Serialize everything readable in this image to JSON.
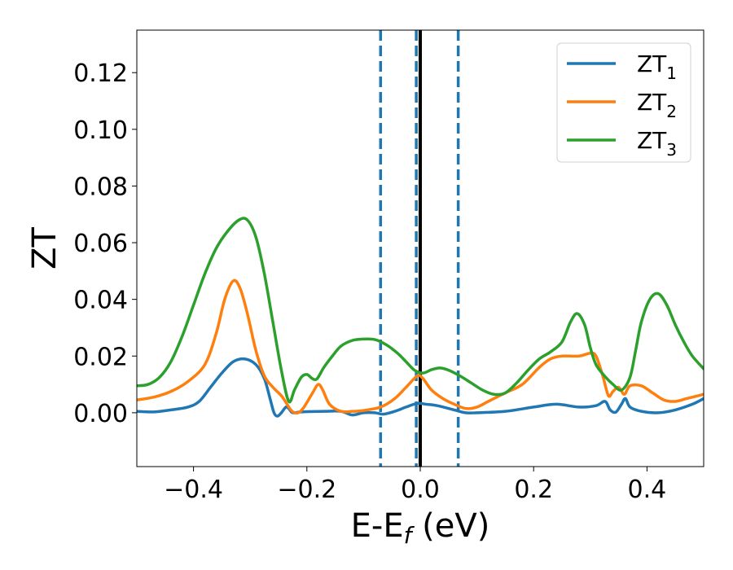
{
  "chart_data": {
    "type": "line",
    "xlabel": "E-E",
    "xlabel_sub": "f",
    "xlabel_suffix": " (eV)",
    "ylabel": "ZT",
    "xlim": [
      -0.5,
      0.5
    ],
    "ylim": [
      -0.019,
      0.135
    ],
    "x_ticks": [
      -0.4,
      -0.2,
      0.0,
      0.2,
      0.4
    ],
    "x_tick_labels": [
      "−0.4",
      "−0.2",
      "0.0",
      "0.2",
      "0.4"
    ],
    "y_ticks": [
      0.0,
      0.02,
      0.04,
      0.06,
      0.08,
      0.1,
      0.12
    ],
    "y_tick_labels": [
      "0.00",
      "0.02",
      "0.04",
      "0.06",
      "0.08",
      "0.10",
      "0.12"
    ],
    "grid": false,
    "legend_position": "top-right",
    "vertical_lines": [
      {
        "x": -0.07,
        "style": "dashed",
        "color": "#1f77b4"
      },
      {
        "x": -0.007,
        "style": "dashed",
        "color": "#1f77b4"
      },
      {
        "x": 0.0,
        "style": "solid",
        "color": "#000000"
      },
      {
        "x": 0.067,
        "style": "dashed",
        "color": "#1f77b4"
      }
    ],
    "series": [
      {
        "name": "ZT",
        "name_sub": "1",
        "color": "#1f77b4",
        "points": [
          [
            -0.5,
            0.0005
          ],
          [
            -0.47,
            0.0003
          ],
          [
            -0.44,
            0.001
          ],
          [
            -0.41,
            0.002
          ],
          [
            -0.39,
            0.004
          ],
          [
            -0.37,
            0.009
          ],
          [
            -0.35,
            0.014
          ],
          [
            -0.33,
            0.018
          ],
          [
            -0.31,
            0.019
          ],
          [
            -0.29,
            0.017
          ],
          [
            -0.275,
            0.012
          ],
          [
            -0.265,
            0.005
          ],
          [
            -0.258,
            0.0
          ],
          [
            -0.252,
            -0.0012
          ],
          [
            -0.245,
            0.0
          ],
          [
            -0.237,
            0.002
          ],
          [
            -0.232,
            0.0015
          ],
          [
            -0.225,
            0.0
          ],
          [
            -0.21,
            0.0003
          ],
          [
            -0.17,
            0.0005
          ],
          [
            -0.14,
            0.0005
          ],
          [
            -0.12,
            -0.0008
          ],
          [
            -0.1,
            0.0
          ],
          [
            -0.08,
            0.0
          ],
          [
            -0.065,
            -0.0005
          ],
          [
            -0.045,
            0.0005
          ],
          [
            -0.025,
            0.002
          ],
          [
            -0.005,
            0.0033
          ],
          [
            0.01,
            0.003
          ],
          [
            0.03,
            0.0025
          ],
          [
            0.06,
            0.001
          ],
          [
            0.08,
            0.0
          ],
          [
            0.1,
            0.0
          ],
          [
            0.15,
            0.0005
          ],
          [
            0.2,
            0.002
          ],
          [
            0.24,
            0.003
          ],
          [
            0.28,
            0.002
          ],
          [
            0.31,
            0.0025
          ],
          [
            0.326,
            0.004
          ],
          [
            0.335,
            0.001
          ],
          [
            0.345,
            0.0002
          ],
          [
            0.355,
            0.003
          ],
          [
            0.362,
            0.005
          ],
          [
            0.37,
            0.002
          ],
          [
            0.39,
            0.0005
          ],
          [
            0.42,
            0.0
          ],
          [
            0.45,
            0.001
          ],
          [
            0.48,
            0.003
          ],
          [
            0.5,
            0.005
          ]
        ]
      },
      {
        "name": "ZT",
        "name_sub": "2",
        "color": "#ff7f0e",
        "points": [
          [
            -0.5,
            0.0045
          ],
          [
            -0.47,
            0.0055
          ],
          [
            -0.44,
            0.0075
          ],
          [
            -0.41,
            0.011
          ],
          [
            -0.38,
            0.017
          ],
          [
            -0.36,
            0.028
          ],
          [
            -0.345,
            0.04
          ],
          [
            -0.33,
            0.0465
          ],
          [
            -0.318,
            0.044
          ],
          [
            -0.305,
            0.035
          ],
          [
            -0.29,
            0.022
          ],
          [
            -0.275,
            0.013
          ],
          [
            -0.26,
            0.009
          ],
          [
            -0.245,
            0.006
          ],
          [
            -0.235,
            0.003
          ],
          [
            -0.226,
            0.0005
          ],
          [
            -0.215,
            0.0
          ],
          [
            -0.205,
            0.002
          ],
          [
            -0.19,
            0.007
          ],
          [
            -0.18,
            0.01
          ],
          [
            -0.172,
            0.008
          ],
          [
            -0.16,
            0.003
          ],
          [
            -0.14,
            0.0005
          ],
          [
            -0.12,
            0.0005
          ],
          [
            -0.1,
            0.0008
          ],
          [
            -0.07,
            0.002
          ],
          [
            -0.045,
            0.005
          ],
          [
            -0.025,
            0.009
          ],
          [
            -0.005,
            0.013
          ],
          [
            0.005,
            0.012
          ],
          [
            0.02,
            0.008
          ],
          [
            0.04,
            0.005
          ],
          [
            0.06,
            0.003
          ],
          [
            0.08,
            0.0015
          ],
          [
            0.1,
            0.002
          ],
          [
            0.12,
            0.004
          ],
          [
            0.15,
            0.007
          ],
          [
            0.18,
            0.01
          ],
          [
            0.21,
            0.016
          ],
          [
            0.23,
            0.019
          ],
          [
            0.25,
            0.02
          ],
          [
            0.28,
            0.02
          ],
          [
            0.3,
            0.021
          ],
          [
            0.31,
            0.02
          ],
          [
            0.322,
            0.013
          ],
          [
            0.332,
            0.006
          ],
          [
            0.34,
            0.0075
          ],
          [
            0.35,
            0.009
          ],
          [
            0.36,
            0.0065
          ],
          [
            0.37,
            0.0095
          ],
          [
            0.39,
            0.0095
          ],
          [
            0.41,
            0.007
          ],
          [
            0.43,
            0.0045
          ],
          [
            0.45,
            0.004
          ],
          [
            0.47,
            0.005
          ],
          [
            0.5,
            0.0065
          ]
        ]
      },
      {
        "name": "ZT",
        "name_sub": "3",
        "color": "#2ca02c",
        "points": [
          [
            -0.5,
            0.0095
          ],
          [
            -0.48,
            0.01
          ],
          [
            -0.46,
            0.0125
          ],
          [
            -0.44,
            0.018
          ],
          [
            -0.42,
            0.027
          ],
          [
            -0.4,
            0.038
          ],
          [
            -0.38,
            0.049
          ],
          [
            -0.36,
            0.058
          ],
          [
            -0.34,
            0.064
          ],
          [
            -0.32,
            0.068
          ],
          [
            -0.305,
            0.068
          ],
          [
            -0.29,
            0.062
          ],
          [
            -0.275,
            0.049
          ],
          [
            -0.26,
            0.032
          ],
          [
            -0.245,
            0.015
          ],
          [
            -0.232,
            0.004
          ],
          [
            -0.222,
            0.008
          ],
          [
            -0.21,
            0.0125
          ],
          [
            -0.2,
            0.0135
          ],
          [
            -0.19,
            0.012
          ],
          [
            -0.182,
            0.012
          ],
          [
            -0.17,
            0.016
          ],
          [
            -0.155,
            0.02
          ],
          [
            -0.14,
            0.0235
          ],
          [
            -0.12,
            0.0255
          ],
          [
            -0.1,
            0.026
          ],
          [
            -0.08,
            0.0258
          ],
          [
            -0.06,
            0.024
          ],
          [
            -0.04,
            0.021
          ],
          [
            -0.025,
            0.018
          ],
          [
            -0.01,
            0.015
          ],
          [
            0.005,
            0.014
          ],
          [
            0.02,
            0.0152
          ],
          [
            0.035,
            0.0158
          ],
          [
            0.05,
            0.015
          ],
          [
            0.07,
            0.013
          ],
          [
            0.09,
            0.0105
          ],
          [
            0.11,
            0.008
          ],
          [
            0.13,
            0.0065
          ],
          [
            0.15,
            0.007
          ],
          [
            0.17,
            0.0105
          ],
          [
            0.19,
            0.015
          ],
          [
            0.21,
            0.019
          ],
          [
            0.23,
            0.0215
          ],
          [
            0.25,
            0.025
          ],
          [
            0.265,
            0.032
          ],
          [
            0.277,
            0.035
          ],
          [
            0.29,
            0.031
          ],
          [
            0.3,
            0.023
          ],
          [
            0.31,
            0.017
          ],
          [
            0.325,
            0.013
          ],
          [
            0.34,
            0.01
          ],
          [
            0.355,
            0.008
          ],
          [
            0.37,
            0.0125
          ],
          [
            0.38,
            0.022
          ],
          [
            0.39,
            0.032
          ],
          [
            0.405,
            0.04
          ],
          [
            0.42,
            0.042
          ],
          [
            0.435,
            0.038
          ],
          [
            0.45,
            0.031
          ],
          [
            0.465,
            0.025
          ],
          [
            0.48,
            0.02
          ],
          [
            0.5,
            0.0155
          ]
        ]
      }
    ]
  }
}
